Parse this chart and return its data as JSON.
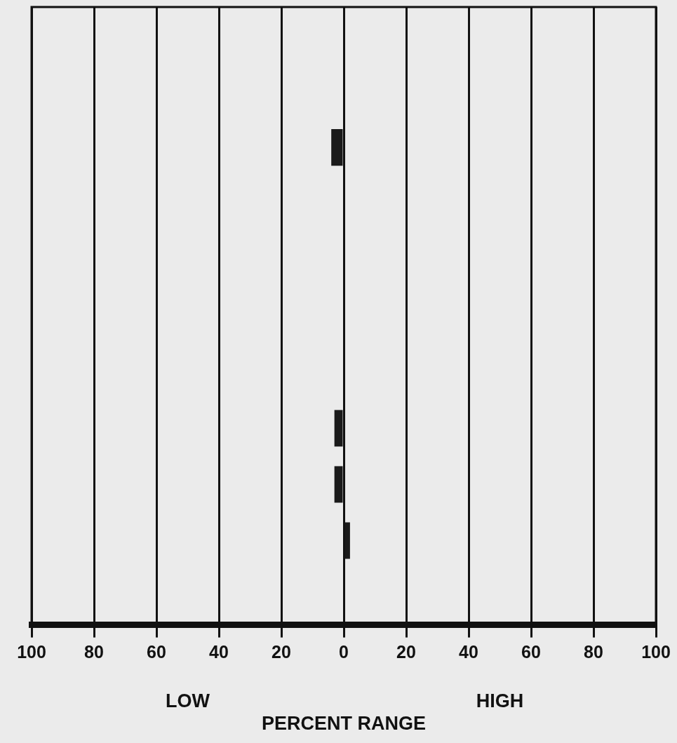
{
  "chart_data": {
    "type": "bar",
    "orientation": "horizontal",
    "xlabel": "PERCENT RANGE",
    "annotations": [
      "LOW",
      "HIGH"
    ],
    "categories": [
      null,
      null,
      null,
      null,
      null,
      null,
      null,
      null,
      null,
      null,
      null
    ],
    "values": [
      null,
      null,
      -4,
      null,
      null,
      null,
      null,
      -3,
      -3,
      2,
      null
    ],
    "color": "#1a1a1a",
    "xlim": [
      -100,
      100
    ],
    "xticks": [
      {
        "value": -100,
        "label": "100"
      },
      {
        "value": -80,
        "label": "80"
      },
      {
        "value": -60,
        "label": "60"
      },
      {
        "value": -40,
        "label": "40"
      },
      {
        "value": -20,
        "label": "20"
      },
      0,
      20,
      40,
      60,
      80,
      100
    ],
    "grid": "x"
  }
}
